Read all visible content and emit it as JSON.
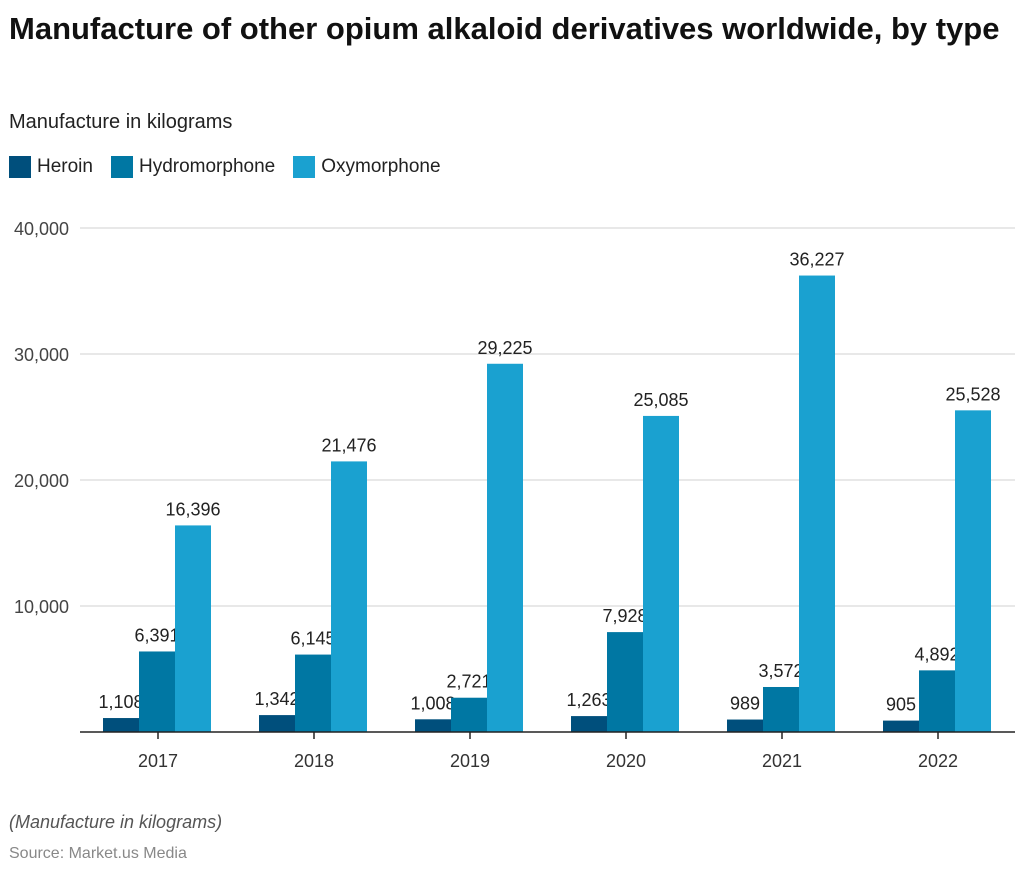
{
  "chart_data": {
    "type": "bar",
    "title": "Manufacture of other opium alkaloid derivatives worldwide, by type",
    "subtitle": "Manufacture in kilograms",
    "categories": [
      "2017",
      "2018",
      "2019",
      "2020",
      "2021",
      "2022"
    ],
    "series": [
      {
        "name": "Heroin",
        "color": "#004f7c",
        "values": [
          1108,
          1342,
          1008,
          1263,
          989,
          905
        ],
        "labels": [
          "1,108",
          "1,342",
          "1,008",
          "1,263",
          "989",
          "905"
        ]
      },
      {
        "name": "Hydromorphone",
        "color": "#0077a3",
        "values": [
          6391,
          6145,
          2721,
          7928,
          3572,
          4892
        ],
        "labels": [
          "6,391",
          "6,145",
          "2,721",
          "7,928",
          "3,572",
          "4,892"
        ]
      },
      {
        "name": "Oxymorphone",
        "color": "#1aa1d0",
        "values": [
          16396,
          21476,
          29225,
          25085,
          36227,
          25528
        ],
        "labels": [
          "16,396",
          "21,476",
          "29,225",
          "25,085",
          "36,227",
          "25,528"
        ]
      }
    ],
    "ylim": [
      0,
      40000
    ],
    "yticks": [
      10000,
      20000,
      30000,
      40000
    ],
    "ytick_labels": [
      "10,000",
      "20,000",
      "30,000",
      "40,000"
    ],
    "grid": true,
    "legend_position": "top-left"
  },
  "footer": {
    "note": "(Manufacture in kilograms)",
    "source": "Source: Market.us Media"
  }
}
